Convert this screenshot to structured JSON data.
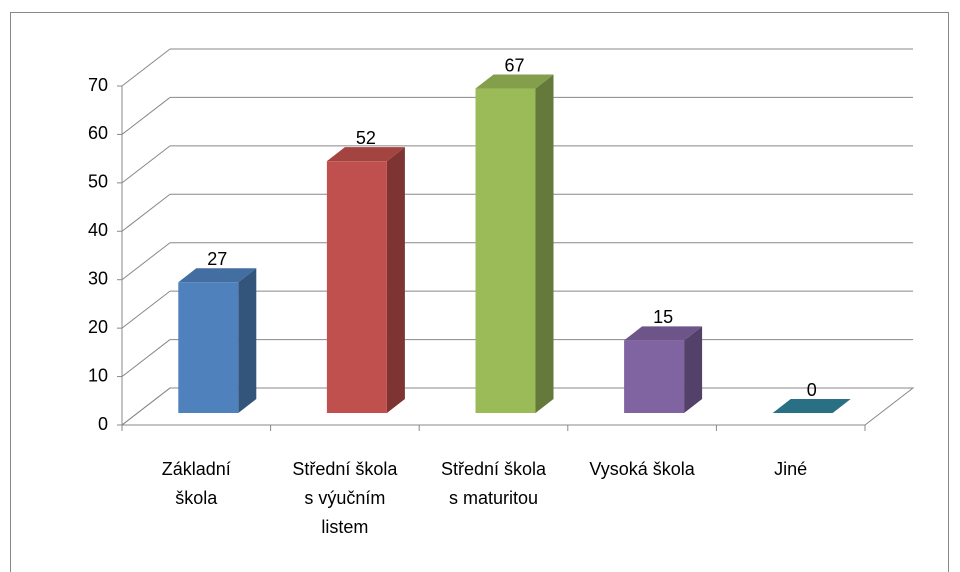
{
  "chart_data": {
    "type": "bar3d",
    "categories": [
      [
        "Základní",
        "škola"
      ],
      [
        "Střední škola",
        "s výučním",
        "listem"
      ],
      [
        "Střední škola",
        "s maturitou"
      ],
      [
        "Vysoká škola"
      ],
      [
        "Jiné"
      ]
    ],
    "values": [
      27,
      52,
      67,
      15,
      0
    ],
    "colors": [
      "#4f81bd",
      "#c0504d",
      "#9bbb59",
      "#8064a2",
      "#31849b"
    ],
    "ylim": [
      0,
      70
    ],
    "yticks": [
      0,
      10,
      20,
      30,
      40,
      50,
      60,
      70
    ],
    "grid": true
  }
}
